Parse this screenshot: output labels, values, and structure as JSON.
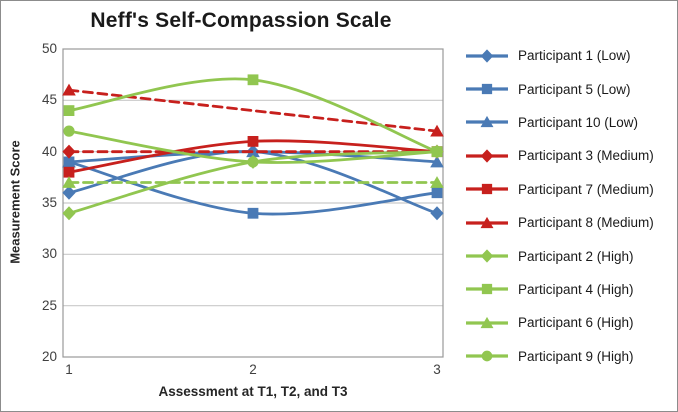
{
  "chart_data": {
    "type": "line",
    "title": "Neff's Self-Compassion Scale",
    "xlabel": "Assessment at T1, T2, and T3",
    "ylabel": "Measurement Score",
    "x": [
      1,
      2,
      3
    ],
    "xticks": [
      "1",
      "2",
      "3"
    ],
    "yticks": [
      50,
      45,
      40,
      35,
      30,
      25,
      20
    ],
    "ylim": [
      20,
      50
    ],
    "grid": true,
    "legend_position": "right",
    "colors": {
      "low": "#4A7AB5",
      "medium": "#C7201D",
      "high": "#91C650"
    },
    "series": [
      {
        "id": "p1",
        "name": "Participant 1 (Low)",
        "group": "Low",
        "color": "#4A7AB5",
        "marker": "diamond",
        "line_style": "solid",
        "marker_points": "all",
        "values": [
          36,
          40,
          34
        ]
      },
      {
        "id": "p5",
        "name": "Participant 5 (Low)",
        "group": "Low",
        "color": "#4A7AB5",
        "marker": "square",
        "line_style": "solid",
        "marker_points": "all",
        "values": [
          39,
          34,
          36
        ]
      },
      {
        "id": "p10",
        "name": "Participant 10 (Low)",
        "group": "Low",
        "color": "#4A7AB5",
        "marker": "triangle",
        "line_style": "solid",
        "marker_points": "all",
        "values": [
          39,
          40,
          39
        ]
      },
      {
        "id": "p3",
        "name": "Participant 3 (Medium)",
        "group": "Medium",
        "color": "#C7201D",
        "marker": "diamond",
        "line_style": "dashed",
        "marker_points": "ends",
        "values": [
          40,
          40,
          40
        ]
      },
      {
        "id": "p7",
        "name": "Participant 7 (Medium)",
        "group": "Medium",
        "color": "#C7201D",
        "marker": "square",
        "line_style": "solid",
        "marker_points": "all",
        "values": [
          38,
          41,
          40
        ]
      },
      {
        "id": "p8",
        "name": "Participant 8 (Medium)",
        "group": "Medium",
        "color": "#C7201D",
        "marker": "triangle",
        "line_style": "dashed",
        "marker_points": "ends",
        "values": [
          46,
          44,
          42
        ]
      },
      {
        "id": "p2",
        "name": "Participant 2 (High)",
        "group": "High",
        "color": "#91C650",
        "marker": "diamond",
        "line_style": "solid",
        "marker_points": "all",
        "values": [
          34,
          39,
          40
        ]
      },
      {
        "id": "p4",
        "name": "Participant 4 (High)",
        "group": "High",
        "color": "#91C650",
        "marker": "square",
        "line_style": "solid",
        "marker_points": "all",
        "values": [
          44,
          47,
          40
        ]
      },
      {
        "id": "p6",
        "name": "Participant 6 (High)",
        "group": "High",
        "color": "#91C650",
        "marker": "triangle",
        "line_style": "dashed",
        "marker_points": "ends",
        "values": [
          37,
          37,
          37
        ]
      },
      {
        "id": "p9",
        "name": "Participant 9 (High)",
        "group": "High",
        "color": "#91C650",
        "marker": "circle",
        "line_style": "solid",
        "marker_points": "all",
        "values": [
          42,
          39,
          40
        ]
      }
    ]
  }
}
